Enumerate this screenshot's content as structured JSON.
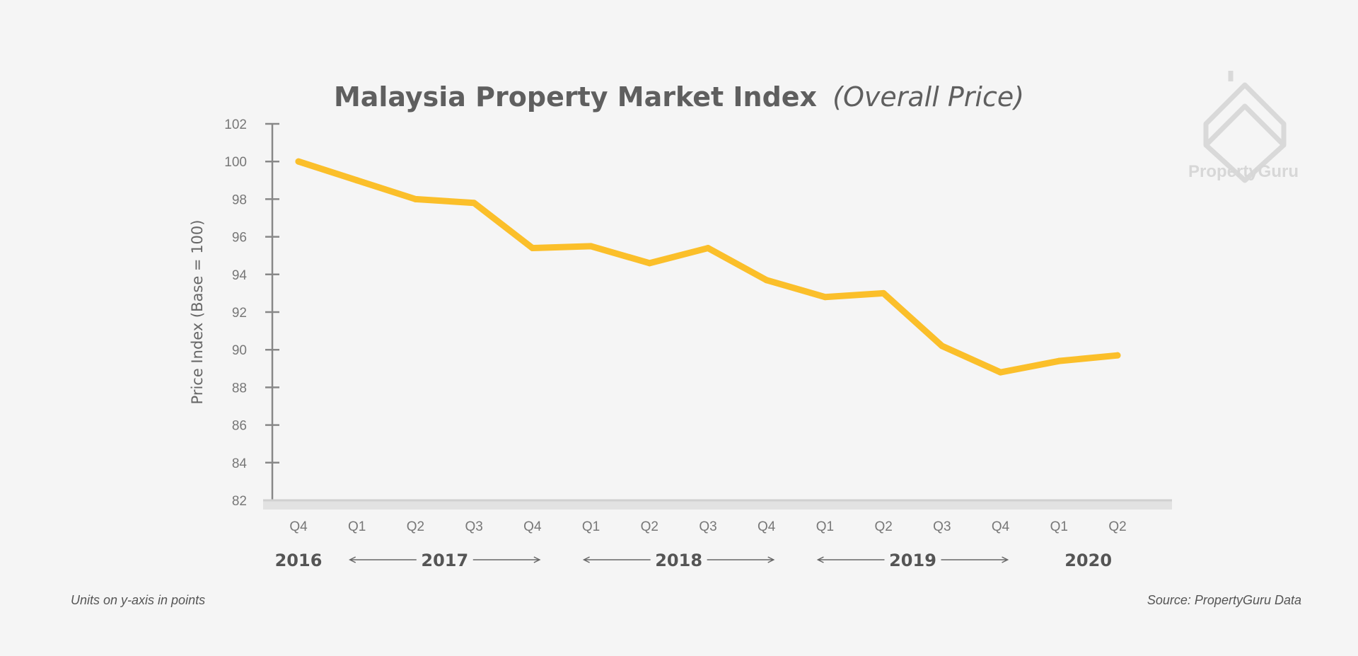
{
  "chart_data": {
    "type": "line",
    "title": "Malaysia Property Market Index",
    "subtitle": "(Overall Price)",
    "ylabel": "Price Index (Base = 100)",
    "xlabel": "",
    "ylim": [
      82,
      102
    ],
    "yticks": [
      "82",
      "84",
      "86",
      "88",
      "90",
      "92",
      "94",
      "96",
      "98",
      "100",
      "102"
    ],
    "categories": [
      "Q4",
      "Q1",
      "Q2",
      "Q3",
      "Q4",
      "Q1",
      "Q2",
      "Q3",
      "Q4",
      "Q1",
      "Q2",
      "Q3",
      "Q4",
      "Q1",
      "Q2"
    ],
    "years": [
      {
        "label": "2016",
        "from": 0,
        "to": 0,
        "arrows": false
      },
      {
        "label": "2017",
        "from": 1,
        "to": 4,
        "arrows": true
      },
      {
        "label": "2018",
        "from": 5,
        "to": 8,
        "arrows": true
      },
      {
        "label": "2019",
        "from": 9,
        "to": 12,
        "arrows": true
      },
      {
        "label": "2020",
        "from": 13,
        "to": 14,
        "arrows": false
      }
    ],
    "series": [
      {
        "values": [
          100.0,
          99.0,
          98.0,
          97.8,
          95.4,
          95.5,
          94.6,
          95.4,
          93.7,
          92.8,
          93.0,
          90.2,
          88.8,
          89.4,
          89.7
        ],
        "color": "#fbbf2a"
      }
    ],
    "grid": false,
    "legend": "none"
  },
  "notes": {
    "units": "Units on y-axis in points",
    "source": "Source: PropertyGuru Data"
  },
  "logo": {
    "text": "PropertyGuru"
  },
  "colors": {
    "background": "#f5f5f5",
    "line": "#fbbf2a",
    "axis": "#888888",
    "text": "#555555"
  }
}
